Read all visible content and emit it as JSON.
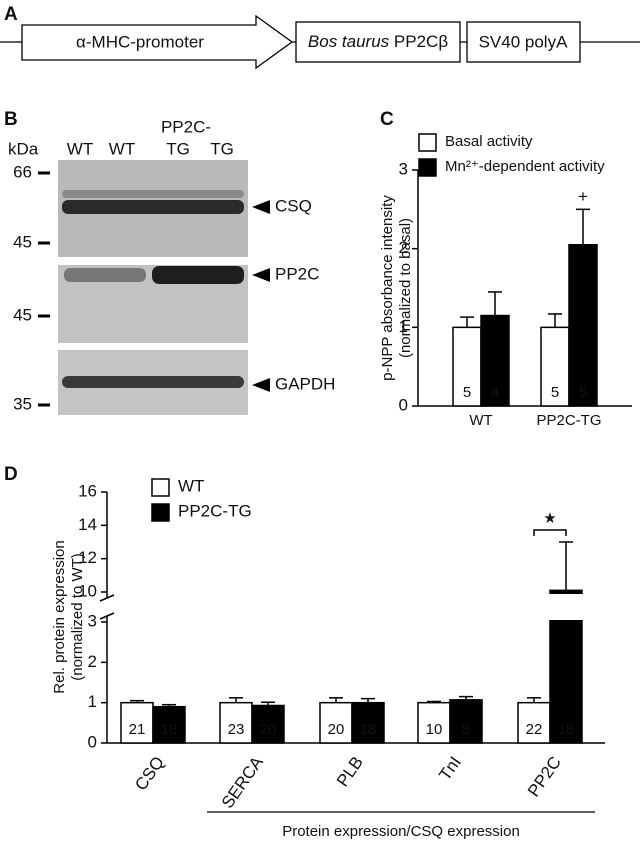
{
  "construct": {
    "panel": "A",
    "elements": [
      "α-MHC-promoter",
      [
        "Bos taurus",
        "PP2Cβ"
      ],
      "SV40 polyA"
    ]
  },
  "blot": {
    "panel": "B",
    "header": "kDa",
    "group_label": "PP2C-",
    "lanes": [
      "WT",
      "WT",
      "TG",
      "TG"
    ],
    "strips": [
      {
        "label": "CSQ",
        "markers": [
          "66",
          "45"
        ]
      },
      {
        "label": "PP2C",
        "markers": [
          "45"
        ]
      },
      {
        "label": "GAPDH",
        "markers": [
          "35"
        ]
      }
    ]
  },
  "chart_data": [
    {
      "type": "bar",
      "panel": "C",
      "categories": [
        "WT",
        "PP2C-TG"
      ],
      "series": [
        {
          "name": "Basal activity",
          "color": "#ffffff",
          "values": [
            1,
            1
          ],
          "errors": [
            0.13,
            0.17
          ],
          "n": [
            5,
            5
          ]
        },
        {
          "name": "Mn²⁺-dependent activity",
          "color": "#000000",
          "values": [
            1.15,
            2.05
          ],
          "errors": [
            0.3,
            0.45
          ],
          "n": [
            4,
            5
          ]
        }
      ],
      "ylim": [
        0,
        3
      ],
      "yticks": [
        0,
        1,
        2,
        3
      ],
      "y_label": [
        "p-NPP absorbance intensity",
        "(normalized to basal)"
      ],
      "legend": "upper left",
      "annotations": [
        {
          "text": "+",
          "category": "PP2C-TG"
        }
      ]
    },
    {
      "type": "bar",
      "panel": "D",
      "categories": [
        "CSQ",
        "SERCA",
        "PLB",
        "TnI",
        "PP2C"
      ],
      "series": [
        {
          "name": "WT",
          "color": "#ffffff",
          "values": [
            1,
            1,
            1,
            1,
            1
          ],
          "errors": [
            0.05,
            0.12,
            0.12,
            0.03,
            0.12
          ],
          "n": [
            21,
            23,
            20,
            10,
            22
          ]
        },
        {
          "name": "PP2C-TG",
          "color": "#000000",
          "values": [
            0.9,
            0.93,
            1.0,
            1.07,
            10.1
          ],
          "errors": [
            0.05,
            0.08,
            0.1,
            0.08,
            2.9
          ],
          "n": [
            18,
            20,
            18,
            8,
            18
          ]
        }
      ],
      "ylim": [
        0,
        16
      ],
      "axis_break": [
        3,
        10
      ],
      "yticks": [
        0,
        1,
        2,
        3,
        10,
        12,
        14,
        16
      ],
      "y_label": [
        "Rel. protein expression",
        "(normalized to WT)"
      ],
      "legend": "upper left",
      "annotations": [
        {
          "text": "★",
          "category": "PP2C",
          "bracket": true
        }
      ],
      "bracket_label": "Protein expression/CSQ expression"
    }
  ]
}
